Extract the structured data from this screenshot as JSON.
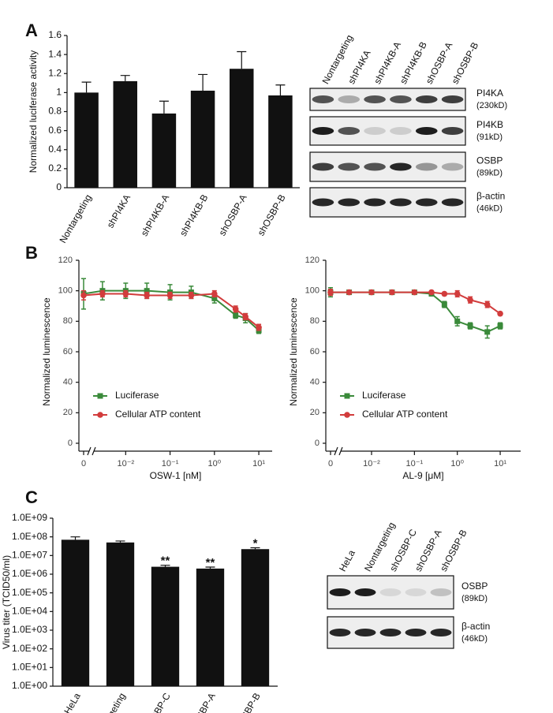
{
  "panels": [
    "A",
    "B",
    "C"
  ],
  "chart_data": [
    {
      "type": "bar",
      "y_label": "Normalized luciferase activity",
      "categories": [
        "Nontargeting",
        "shPI4KA",
        "shPI4KB-A",
        "shPI4KB-B",
        "shOSBP-A",
        "shOSBP-B"
      ],
      "values": [
        1.0,
        1.12,
        0.78,
        1.02,
        1.25,
        0.97
      ],
      "errors": [
        0.11,
        0.06,
        0.13,
        0.17,
        0.18,
        0.11
      ],
      "color": "#111111",
      "ylim": [
        0,
        1.6
      ],
      "yticks": [
        0,
        0.2,
        0.4,
        0.6,
        0.8,
        1,
        1.2,
        1.4,
        1.6
      ]
    },
    {
      "type": "line",
      "y_label": "Normalized luminescence",
      "x_label": "OSW-1 [nM]",
      "log_x": true,
      "axis_break": true,
      "x": [
        0,
        0.003,
        0.01,
        0.03,
        0.1,
        0.3,
        1,
        3,
        5,
        10
      ],
      "series": [
        {
          "name": "Luciferase",
          "color": "#3a8a3a",
          "marker": "square",
          "values": [
            98,
            100,
            100,
            100,
            99,
            99,
            95,
            84,
            82,
            74
          ],
          "errors": [
            10,
            6,
            5,
            5,
            5,
            4,
            3,
            2,
            3,
            2
          ]
        },
        {
          "name": "Cellular ATP content",
          "color": "#d23c3c",
          "marker": "circle",
          "values": [
            97,
            98,
            98,
            97,
            97,
            97,
            98,
            88,
            83,
            76
          ],
          "errors": [
            3,
            2,
            2,
            2,
            2,
            2,
            2,
            2,
            2,
            2
          ]
        }
      ],
      "xlim": [
        0.002,
        20
      ],
      "ylim": [
        0,
        120
      ],
      "yticks": [
        0,
        20,
        40,
        60,
        80,
        100,
        120
      ],
      "xticks": [
        0,
        {
          "value": 0.01,
          "label": "10⁻²"
        },
        {
          "value": 0.1,
          "label": "10⁻¹"
        },
        {
          "value": 1,
          "label": "10⁰"
        },
        {
          "value": 10,
          "label": "10¹"
        }
      ],
      "legend_position": "lower left"
    },
    {
      "type": "line",
      "y_label": "Normalized luminescence",
      "x_label": "AL-9 [μM]",
      "log_x": true,
      "axis_break": true,
      "x": [
        0,
        0.003,
        0.01,
        0.03,
        0.1,
        0.25,
        0.5,
        1,
        2,
        5,
        10
      ],
      "series": [
        {
          "name": "Luciferase",
          "color": "#3a8a3a",
          "marker": "square",
          "values": [
            99,
            99,
            99,
            99,
            99,
            98,
            91,
            80,
            77,
            73,
            77
          ],
          "errors": [
            3,
            1,
            1,
            1,
            1,
            1,
            2,
            3,
            2,
            4,
            2
          ]
        },
        {
          "name": "Cellular ATP content",
          "color": "#d23c3c",
          "marker": "circle",
          "values": [
            99,
            99,
            99,
            99,
            99,
            99,
            98,
            98,
            94,
            91,
            85
          ],
          "errors": [
            2,
            1,
            1,
            1,
            1,
            1,
            1,
            2,
            2,
            2,
            1
          ]
        }
      ],
      "xlim": [
        0.002,
        30
      ],
      "ylim": [
        0,
        120
      ],
      "yticks": [
        0,
        20,
        40,
        60,
        80,
        100,
        120
      ],
      "xticks": [
        0,
        {
          "value": 0.01,
          "label": "10⁻²"
        },
        {
          "value": 0.1,
          "label": "10⁻¹"
        },
        {
          "value": 1,
          "label": "10⁰"
        },
        {
          "value": 10,
          "label": "10¹"
        }
      ],
      "legend_position": "lower left"
    },
    {
      "type": "bar",
      "y_label": "Virus titer (TCID50/ml)",
      "log_y": true,
      "categories": [
        "HeLa",
        "Nontargeting",
        "shOSBP-C",
        "shOSBP-A",
        "shOSBP-B"
      ],
      "values": [
        70000000,
        50000000,
        2500000,
        2000000,
        22000000
      ],
      "errors": [
        30000000,
        10000000,
        500000,
        400000,
        4000000
      ],
      "significance": [
        null,
        null,
        "**",
        "**",
        "*"
      ],
      "color": "#111111",
      "ylim": [
        1,
        1000000000
      ],
      "yticks": [
        {
          "value": 1,
          "label": "1.0E+00"
        },
        {
          "value": 10,
          "label": "1.0E+01"
        },
        {
          "value": 100,
          "label": "1.0E+02"
        },
        {
          "value": 1000,
          "label": "1.0E+03"
        },
        {
          "value": 10000,
          "label": "1.0E+04"
        },
        {
          "value": 100000,
          "label": "1.0E+05"
        },
        {
          "value": 1000000,
          "label": "1.0E+06"
        },
        {
          "value": 10000000,
          "label": "1.0E+07"
        },
        {
          "value": 100000000,
          "label": "1.0E+08"
        },
        {
          "value": 1000000000,
          "label": "1.0E+09"
        }
      ]
    }
  ],
  "blots": [
    {
      "lanes": [
        "Nontargeting",
        "shPI4KA",
        "shPI4KB-A",
        "shPI4KB-B",
        "shOSBP-A",
        "shOSBP-B"
      ],
      "rows": [
        {
          "protein": "PI4KA",
          "size": "(230kD)",
          "intensity": [
            0.7,
            0.3,
            0.7,
            0.7,
            0.8,
            0.8
          ]
        },
        {
          "protein": "PI4KB",
          "size": "(91kD)",
          "intensity": [
            0.95,
            0.7,
            0.15,
            0.15,
            0.95,
            0.8
          ]
        },
        {
          "protein": "OSBP",
          "size": "(89kD)",
          "intensity": [
            0.8,
            0.7,
            0.7,
            0.9,
            0.4,
            0.3
          ]
        },
        {
          "protein": "β-actin",
          "size": "(46kD)",
          "intensity": [
            0.9,
            0.9,
            0.9,
            0.9,
            0.9,
            0.9
          ]
        }
      ]
    },
    {
      "lanes": [
        "HeLa",
        "Nontargeting",
        "shOSBP-C",
        "shOSBP-A",
        "shOSBP-B"
      ],
      "rows": [
        {
          "protein": "OSBP",
          "size": "(89kD)",
          "intensity": [
            0.95,
            0.95,
            0.1,
            0.1,
            0.2
          ]
        },
        {
          "protein": "β-actin",
          "size": "(46kD)",
          "intensity": [
            0.9,
            0.9,
            0.9,
            0.9,
            0.9
          ]
        }
      ]
    }
  ]
}
